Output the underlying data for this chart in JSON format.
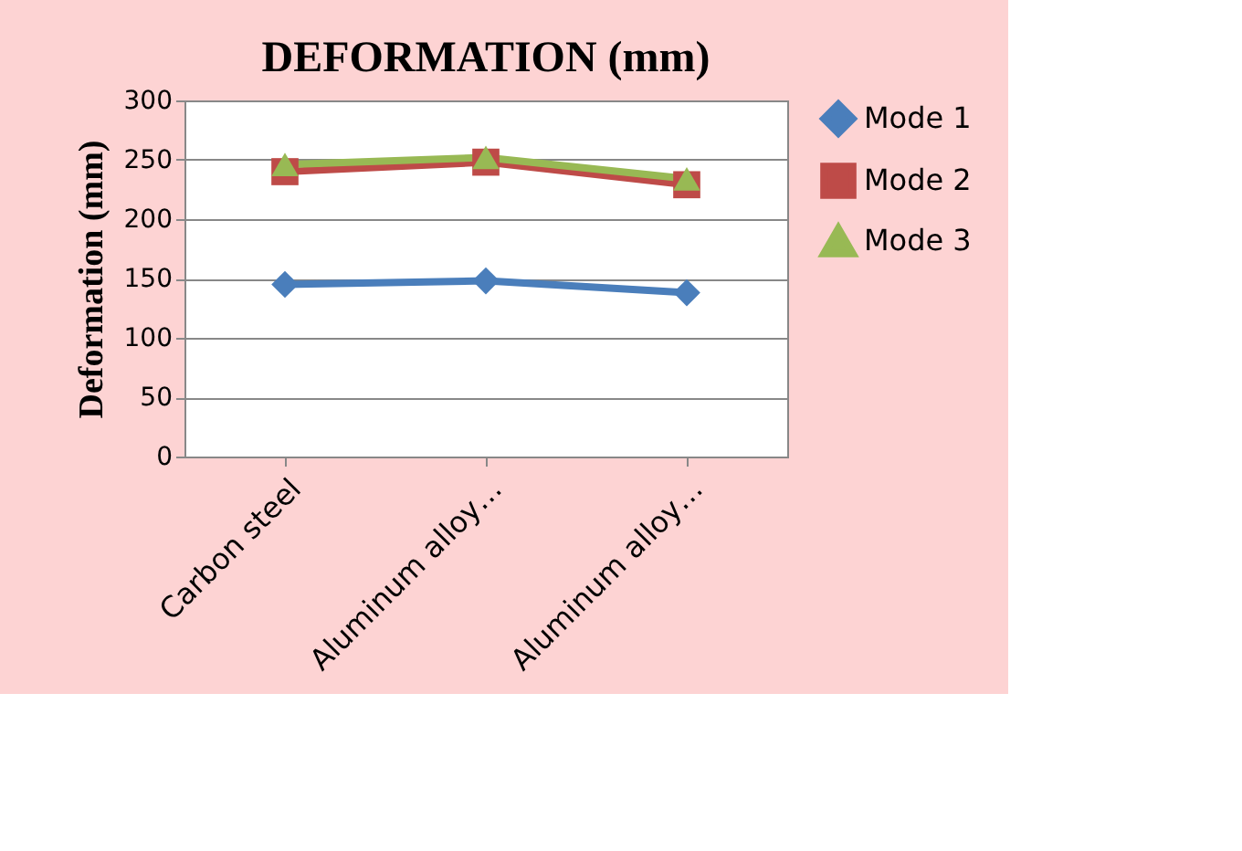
{
  "chart_data": {
    "type": "line",
    "title": "DEFORMATION (mm)",
    "ylabel": "Deformation (mm)",
    "categories": [
      "Carbon steel",
      "Aluminum alloy…",
      "Aluminum alloy…"
    ],
    "series": [
      {
        "name": "Mode 1",
        "color": "#4a7ebb",
        "marker": "diamond",
        "values": [
          145,
          148,
          138
        ]
      },
      {
        "name": "Mode 2",
        "color": "#be4b48",
        "marker": "square",
        "values": [
          240,
          248,
          229
        ]
      },
      {
        "name": "Mode 3",
        "color": "#98b954",
        "marker": "triangle",
        "values": [
          246,
          252,
          234
        ]
      }
    ],
    "ylim": [
      0,
      300
    ],
    "yticks": [
      0,
      50,
      100,
      150,
      200,
      250,
      300
    ],
    "grid": "y",
    "legend": "right",
    "line_style": "solid"
  }
}
